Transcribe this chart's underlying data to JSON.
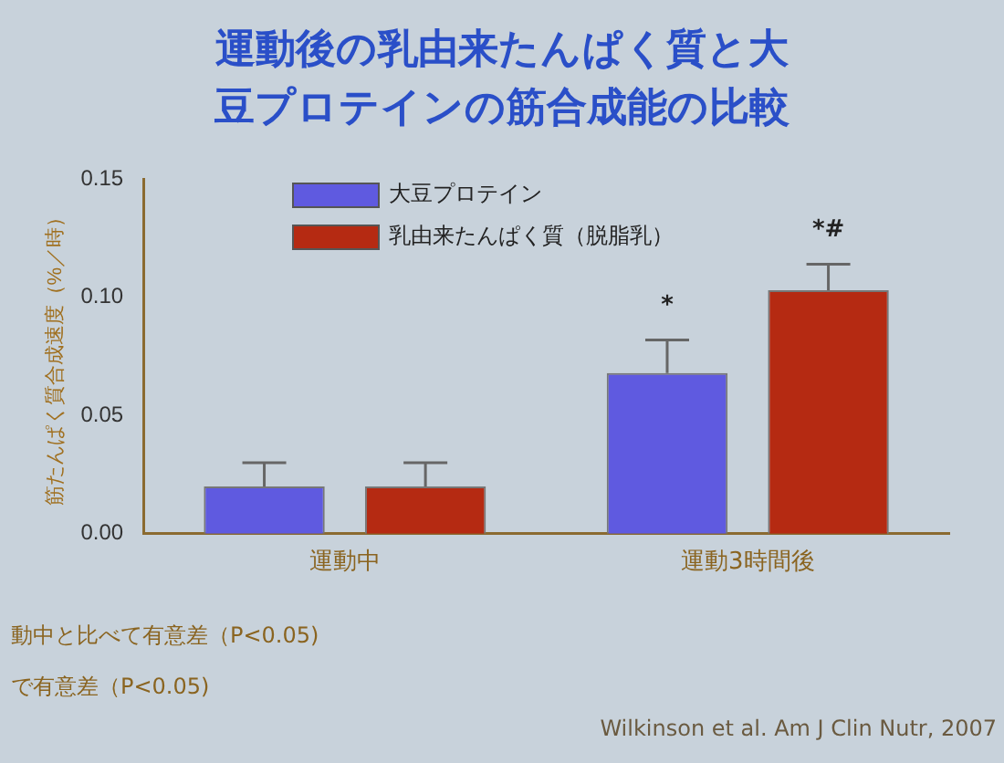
{
  "chart_data": {
    "type": "bar",
    "title": "運動後の乳由来たんぱく質と大豆プロテインの筋合成能の比較",
    "ylabel": "筋たんぱく質合成速度（%／時）",
    "categories": [
      "運動中",
      "運動3時間後"
    ],
    "series": [
      {
        "name": "大豆プロテイン",
        "color": "#5f5ae0",
        "values": [
          0.02,
          0.068
        ],
        "errors": [
          0.01,
          0.014
        ]
      },
      {
        "name": "乳由来たんぱく質（脱脂乳）",
        "color": "#b52a12",
        "values": [
          0.02,
          0.103
        ],
        "errors": [
          0.01,
          0.011
        ]
      }
    ],
    "ylim": [
      0,
      0.15
    ],
    "yticks": [
      {
        "value": 0,
        "label": "0.00"
      },
      {
        "value": 0.05,
        "label": "0.05"
      },
      {
        "value": 0.1,
        "label": "0.10"
      },
      {
        "value": 0.15,
        "label": "0.15"
      }
    ],
    "grid": false,
    "legend": "top left",
    "annotations": [
      "*",
      "*#",
      "動中と比べて有意差（P<0.05)",
      "で有意差（P<0.05)",
      "Wilkinson et al. Am J Clin Nutr, 2007"
    ]
  }
}
